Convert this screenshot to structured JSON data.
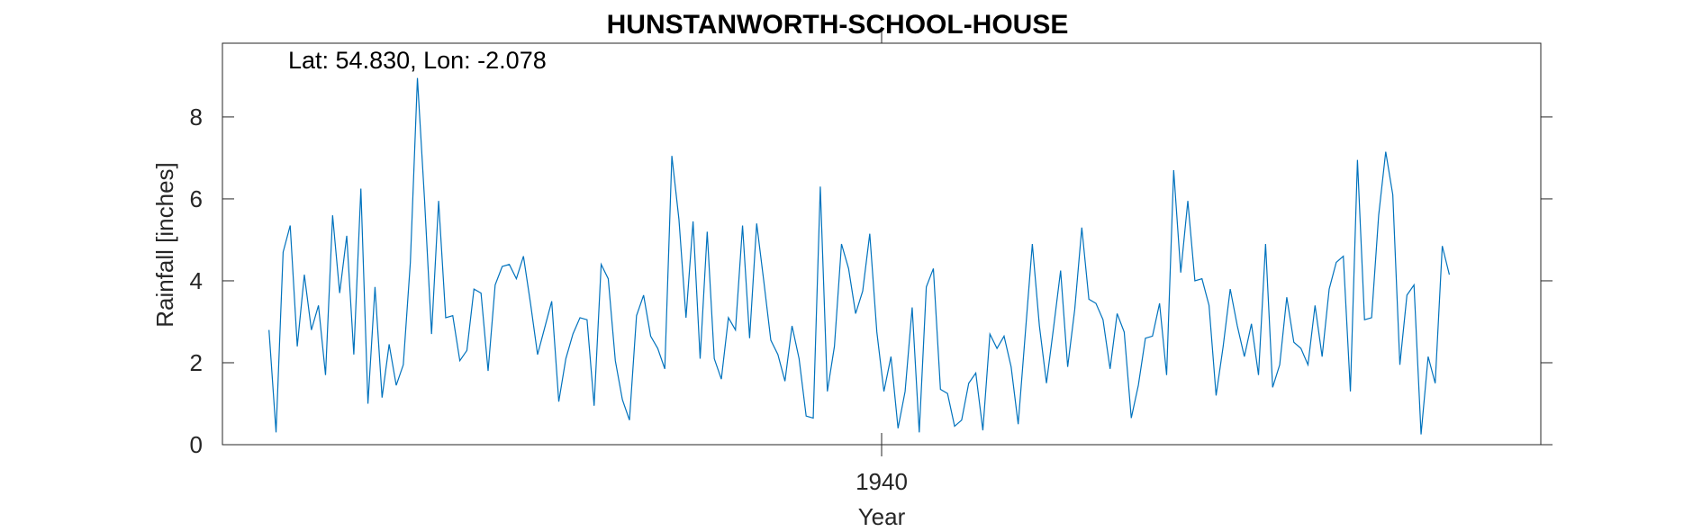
{
  "chart_data": {
    "type": "line",
    "title": "HUNSTANWORTH-SCHOOL-HOUSE",
    "annotation": "Lat: 54.830, Lon: -2.078",
    "xlabel": "Year",
    "ylabel": "Rainfall [inches]",
    "xlim": [
      1927.4,
      1952.6
    ],
    "ylim": [
      0,
      9.8
    ],
    "xticks": [
      1940
    ],
    "xtick_labels": [
      "1940"
    ],
    "yticks": [
      0,
      2,
      4,
      6,
      8
    ],
    "ytick_labels": [
      "0",
      "2",
      "4",
      "6",
      "8"
    ],
    "color": "#0072BD",
    "series": [
      {
        "name": "Rainfall",
        "x_start": 1928.29,
        "x_step": 0.1351,
        "values": [
          2.8,
          0.3,
          4.7,
          5.35,
          2.4,
          4.15,
          2.8,
          3.4,
          1.7,
          5.6,
          3.7,
          5.1,
          2.2,
          6.25,
          1.0,
          3.85,
          1.15,
          2.45,
          1.45,
          1.95,
          4.45,
          8.95,
          6.0,
          2.7,
          5.95,
          3.1,
          3.15,
          2.05,
          2.3,
          3.8,
          3.7,
          1.8,
          3.9,
          4.35,
          4.4,
          4.05,
          4.6,
          3.45,
          2.2,
          2.85,
          3.5,
          1.05,
          2.1,
          2.7,
          3.1,
          3.05,
          0.95,
          4.4,
          4.05,
          2.05,
          1.1,
          0.6,
          3.15,
          3.65,
          2.65,
          2.35,
          1.85,
          7.05,
          5.5,
          3.1,
          5.45,
          2.1,
          5.2,
          2.1,
          1.6,
          3.1,
          2.8,
          5.35,
          2.6,
          5.4,
          4.0,
          2.55,
          2.2,
          1.55,
          2.9,
          2.1,
          0.7,
          0.65,
          6.3,
          1.3,
          2.4,
          4.9,
          4.3,
          3.2,
          3.75,
          5.15,
          2.75,
          1.3,
          2.15,
          0.4,
          1.3,
          3.35,
          0.3,
          3.85,
          4.3,
          1.35,
          1.25,
          0.45,
          0.6,
          1.5,
          1.75,
          0.35,
          2.7,
          2.35,
          2.65,
          1.9,
          0.5,
          2.7,
          4.9,
          2.9,
          1.5,
          2.85,
          4.25,
          1.9,
          3.3,
          5.3,
          3.55,
          3.45,
          3.05,
          1.85,
          3.2,
          2.75,
          0.65,
          1.45,
          2.6,
          2.65,
          3.45,
          1.7,
          6.7,
          4.2,
          5.95,
          4.0,
          4.05,
          3.4,
          1.2,
          2.4,
          3.8,
          2.9,
          2.15,
          2.95,
          1.7,
          4.9,
          1.4,
          1.95,
          3.6,
          2.5,
          2.35,
          1.95,
          3.4,
          2.15,
          3.8,
          4.45,
          4.6,
          1.3,
          6.95,
          3.05,
          3.1,
          5.6,
          7.15,
          6.1,
          1.95,
          3.65,
          3.9,
          0.25,
          2.15,
          1.5,
          4.85,
          4.15
        ]
      }
    ]
  }
}
